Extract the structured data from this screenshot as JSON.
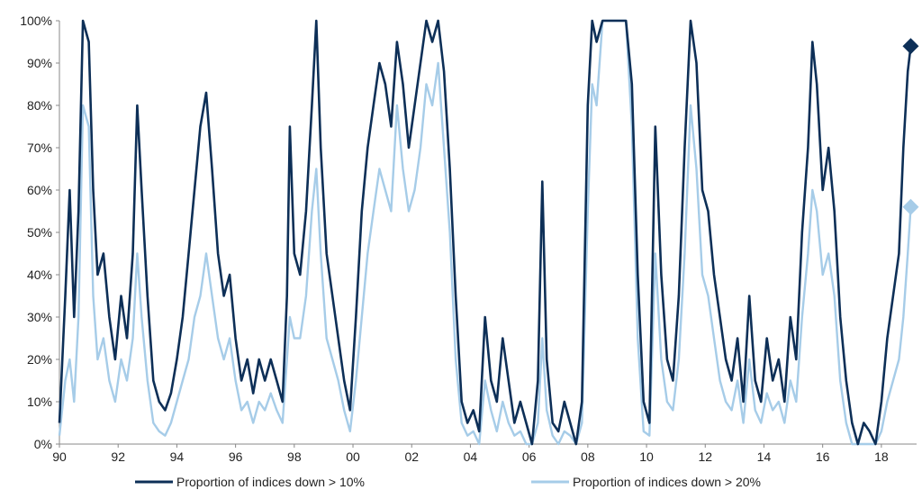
{
  "chart_data": {
    "type": "line",
    "title": "",
    "xlabel": "",
    "ylabel": "",
    "x_range": [
      1990,
      2019.2
    ],
    "ylim": [
      0,
      100
    ],
    "y_ticks": [
      0,
      10,
      20,
      30,
      40,
      50,
      60,
      70,
      80,
      90,
      100
    ],
    "y_tick_labels": [
      "0%",
      "10%",
      "20%",
      "30%",
      "40%",
      "50%",
      "60%",
      "70%",
      "80%",
      "90%",
      "100%"
    ],
    "x_ticks": [
      1990,
      1992,
      1994,
      1996,
      1998,
      2000,
      2002,
      2004,
      2006,
      2008,
      2010,
      2012,
      2014,
      2016,
      2018
    ],
    "x_tick_labels": [
      "90",
      "92",
      "94",
      "96",
      "98",
      "00",
      "02",
      "04",
      "06",
      "08",
      "10",
      "12",
      "14",
      "16",
      "18"
    ],
    "grid": false,
    "legend_position": "bottom",
    "colors": {
      "series1": "#0d2f57",
      "series2": "#a6cce8"
    },
    "series": [
      {
        "name": "Proportion of indices down > 10%",
        "points": [
          [
            1990.0,
            5
          ],
          [
            1990.2,
            35
          ],
          [
            1990.35,
            60
          ],
          [
            1990.5,
            30
          ],
          [
            1990.65,
            55
          ],
          [
            1990.8,
            100
          ],
          [
            1991.0,
            95
          ],
          [
            1991.15,
            60
          ],
          [
            1991.3,
            40
          ],
          [
            1991.5,
            45
          ],
          [
            1991.7,
            30
          ],
          [
            1991.9,
            20
          ],
          [
            1992.1,
            35
          ],
          [
            1992.3,
            25
          ],
          [
            1992.5,
            45
          ],
          [
            1992.65,
            80
          ],
          [
            1992.8,
            60
          ],
          [
            1993.0,
            35
          ],
          [
            1993.2,
            15
          ],
          [
            1993.4,
            10
          ],
          [
            1993.6,
            8
          ],
          [
            1993.8,
            12
          ],
          [
            1994.0,
            20
          ],
          [
            1994.2,
            30
          ],
          [
            1994.4,
            45
          ],
          [
            1994.6,
            60
          ],
          [
            1994.8,
            75
          ],
          [
            1995.0,
            83
          ],
          [
            1995.2,
            65
          ],
          [
            1995.4,
            45
          ],
          [
            1995.6,
            35
          ],
          [
            1995.8,
            40
          ],
          [
            1996.0,
            25
          ],
          [
            1996.2,
            15
          ],
          [
            1996.4,
            20
          ],
          [
            1996.6,
            12
          ],
          [
            1996.8,
            20
          ],
          [
            1997.0,
            15
          ],
          [
            1997.2,
            20
          ],
          [
            1997.4,
            15
          ],
          [
            1997.6,
            10
          ],
          [
            1997.75,
            35
          ],
          [
            1997.85,
            75
          ],
          [
            1998.0,
            45
          ],
          [
            1998.2,
            40
          ],
          [
            1998.4,
            55
          ],
          [
            1998.6,
            80
          ],
          [
            1998.75,
            100
          ],
          [
            1998.9,
            70
          ],
          [
            1999.1,
            45
          ],
          [
            1999.3,
            35
          ],
          [
            1999.5,
            25
          ],
          [
            1999.7,
            15
          ],
          [
            1999.9,
            8
          ],
          [
            2000.1,
            30
          ],
          [
            2000.3,
            55
          ],
          [
            2000.5,
            70
          ],
          [
            2000.7,
            80
          ],
          [
            2000.9,
            90
          ],
          [
            2001.1,
            85
          ],
          [
            2001.3,
            75
          ],
          [
            2001.5,
            95
          ],
          [
            2001.7,
            85
          ],
          [
            2001.9,
            70
          ],
          [
            2002.1,
            80
          ],
          [
            2002.3,
            90
          ],
          [
            2002.5,
            100
          ],
          [
            2002.7,
            95
          ],
          [
            2002.9,
            100
          ],
          [
            2003.1,
            88
          ],
          [
            2003.3,
            65
          ],
          [
            2003.5,
            35
          ],
          [
            2003.7,
            10
          ],
          [
            2003.9,
            5
          ],
          [
            2004.1,
            8
          ],
          [
            2004.3,
            3
          ],
          [
            2004.5,
            30
          ],
          [
            2004.7,
            15
          ],
          [
            2004.9,
            10
          ],
          [
            2005.1,
            25
          ],
          [
            2005.3,
            15
          ],
          [
            2005.5,
            5
          ],
          [
            2005.7,
            10
          ],
          [
            2005.9,
            5
          ],
          [
            2006.1,
            0
          ],
          [
            2006.3,
            15
          ],
          [
            2006.45,
            62
          ],
          [
            2006.6,
            20
          ],
          [
            2006.8,
            5
          ],
          [
            2007.0,
            3
          ],
          [
            2007.2,
            10
          ],
          [
            2007.4,
            5
          ],
          [
            2007.6,
            0
          ],
          [
            2007.8,
            10
          ],
          [
            2008.0,
            80
          ],
          [
            2008.15,
            100
          ],
          [
            2008.3,
            95
          ],
          [
            2008.5,
            100
          ],
          [
            2008.7,
            100
          ],
          [
            2009.0,
            100
          ],
          [
            2009.3,
            100
          ],
          [
            2009.5,
            85
          ],
          [
            2009.7,
            40
          ],
          [
            2009.9,
            10
          ],
          [
            2010.1,
            5
          ],
          [
            2010.3,
            75
          ],
          [
            2010.5,
            40
          ],
          [
            2010.7,
            20
          ],
          [
            2010.9,
            15
          ],
          [
            2011.1,
            35
          ],
          [
            2011.3,
            70
          ],
          [
            2011.5,
            100
          ],
          [
            2011.7,
            90
          ],
          [
            2011.9,
            60
          ],
          [
            2012.1,
            55
          ],
          [
            2012.3,
            40
          ],
          [
            2012.5,
            30
          ],
          [
            2012.7,
            20
          ],
          [
            2012.9,
            15
          ],
          [
            2013.1,
            25
          ],
          [
            2013.3,
            10
          ],
          [
            2013.5,
            35
          ],
          [
            2013.7,
            15
          ],
          [
            2013.9,
            10
          ],
          [
            2014.1,
            25
          ],
          [
            2014.3,
            15
          ],
          [
            2014.5,
            20
          ],
          [
            2014.7,
            10
          ],
          [
            2014.9,
            30
          ],
          [
            2015.1,
            20
          ],
          [
            2015.3,
            50
          ],
          [
            2015.5,
            70
          ],
          [
            2015.65,
            95
          ],
          [
            2015.8,
            85
          ],
          [
            2016.0,
            60
          ],
          [
            2016.2,
            70
          ],
          [
            2016.4,
            55
          ],
          [
            2016.6,
            30
          ],
          [
            2016.8,
            15
          ],
          [
            2017.0,
            5
          ],
          [
            2017.2,
            0
          ],
          [
            2017.4,
            5
          ],
          [
            2017.6,
            3
          ],
          [
            2017.8,
            0
          ],
          [
            2018.0,
            10
          ],
          [
            2018.2,
            25
          ],
          [
            2018.4,
            35
          ],
          [
            2018.6,
            45
          ],
          [
            2018.75,
            70
          ],
          [
            2018.9,
            88
          ],
          [
            2019.0,
            94
          ]
        ],
        "end_value": 94
      },
      {
        "name": "Proportion of indices down > 20%",
        "points": [
          [
            1990.0,
            2
          ],
          [
            1990.2,
            15
          ],
          [
            1990.35,
            20
          ],
          [
            1990.5,
            10
          ],
          [
            1990.65,
            30
          ],
          [
            1990.8,
            80
          ],
          [
            1991.0,
            75
          ],
          [
            1991.15,
            35
          ],
          [
            1991.3,
            20
          ],
          [
            1991.5,
            25
          ],
          [
            1991.7,
            15
          ],
          [
            1991.9,
            10
          ],
          [
            1992.1,
            20
          ],
          [
            1992.3,
            15
          ],
          [
            1992.5,
            25
          ],
          [
            1992.65,
            45
          ],
          [
            1992.8,
            30
          ],
          [
            1993.0,
            15
          ],
          [
            1993.2,
            5
          ],
          [
            1993.4,
            3
          ],
          [
            1993.6,
            2
          ],
          [
            1993.8,
            5
          ],
          [
            1994.0,
            10
          ],
          [
            1994.2,
            15
          ],
          [
            1994.4,
            20
          ],
          [
            1994.6,
            30
          ],
          [
            1994.8,
            35
          ],
          [
            1995.0,
            45
          ],
          [
            1995.2,
            35
          ],
          [
            1995.4,
            25
          ],
          [
            1995.6,
            20
          ],
          [
            1995.8,
            25
          ],
          [
            1996.0,
            15
          ],
          [
            1996.2,
            8
          ],
          [
            1996.4,
            10
          ],
          [
            1996.6,
            5
          ],
          [
            1996.8,
            10
          ],
          [
            1997.0,
            8
          ],
          [
            1997.2,
            12
          ],
          [
            1997.4,
            8
          ],
          [
            1997.6,
            5
          ],
          [
            1997.75,
            20
          ],
          [
            1997.85,
            30
          ],
          [
            1998.0,
            25
          ],
          [
            1998.2,
            25
          ],
          [
            1998.4,
            35
          ],
          [
            1998.6,
            55
          ],
          [
            1998.75,
            65
          ],
          [
            1998.9,
            45
          ],
          [
            1999.1,
            25
          ],
          [
            1999.3,
            20
          ],
          [
            1999.5,
            15
          ],
          [
            1999.7,
            8
          ],
          [
            1999.9,
            3
          ],
          [
            2000.1,
            15
          ],
          [
            2000.3,
            30
          ],
          [
            2000.5,
            45
          ],
          [
            2000.7,
            55
          ],
          [
            2000.9,
            65
          ],
          [
            2001.1,
            60
          ],
          [
            2001.3,
            55
          ],
          [
            2001.5,
            80
          ],
          [
            2001.7,
            65
          ],
          [
            2001.9,
            55
          ],
          [
            2002.1,
            60
          ],
          [
            2002.3,
            70
          ],
          [
            2002.5,
            85
          ],
          [
            2002.7,
            80
          ],
          [
            2002.9,
            90
          ],
          [
            2003.1,
            70
          ],
          [
            2003.3,
            50
          ],
          [
            2003.5,
            20
          ],
          [
            2003.7,
            5
          ],
          [
            2003.9,
            2
          ],
          [
            2004.1,
            3
          ],
          [
            2004.3,
            0
          ],
          [
            2004.5,
            15
          ],
          [
            2004.7,
            8
          ],
          [
            2004.9,
            3
          ],
          [
            2005.1,
            10
          ],
          [
            2005.3,
            5
          ],
          [
            2005.5,
            2
          ],
          [
            2005.7,
            3
          ],
          [
            2005.9,
            0
          ],
          [
            2006.1,
            0
          ],
          [
            2006.3,
            5
          ],
          [
            2006.45,
            25
          ],
          [
            2006.6,
            8
          ],
          [
            2006.8,
            2
          ],
          [
            2007.0,
            0
          ],
          [
            2007.2,
            3
          ],
          [
            2007.4,
            2
          ],
          [
            2007.6,
            0
          ],
          [
            2007.8,
            5
          ],
          [
            2008.0,
            55
          ],
          [
            2008.15,
            85
          ],
          [
            2008.3,
            80
          ],
          [
            2008.5,
            100
          ],
          [
            2008.7,
            100
          ],
          [
            2009.0,
            100
          ],
          [
            2009.3,
            100
          ],
          [
            2009.5,
            75
          ],
          [
            2009.7,
            25
          ],
          [
            2009.9,
            3
          ],
          [
            2010.1,
            2
          ],
          [
            2010.3,
            45
          ],
          [
            2010.5,
            20
          ],
          [
            2010.7,
            10
          ],
          [
            2010.9,
            8
          ],
          [
            2011.1,
            20
          ],
          [
            2011.3,
            45
          ],
          [
            2011.5,
            80
          ],
          [
            2011.7,
            65
          ],
          [
            2011.9,
            40
          ],
          [
            2012.1,
            35
          ],
          [
            2012.3,
            25
          ],
          [
            2012.5,
            15
          ],
          [
            2012.7,
            10
          ],
          [
            2012.9,
            8
          ],
          [
            2013.1,
            15
          ],
          [
            2013.3,
            5
          ],
          [
            2013.5,
            20
          ],
          [
            2013.7,
            8
          ],
          [
            2013.9,
            5
          ],
          [
            2014.1,
            12
          ],
          [
            2014.3,
            8
          ],
          [
            2014.5,
            10
          ],
          [
            2014.7,
            5
          ],
          [
            2014.9,
            15
          ],
          [
            2015.1,
            10
          ],
          [
            2015.3,
            30
          ],
          [
            2015.5,
            45
          ],
          [
            2015.65,
            60
          ],
          [
            2015.8,
            55
          ],
          [
            2016.0,
            40
          ],
          [
            2016.2,
            45
          ],
          [
            2016.4,
            35
          ],
          [
            2016.6,
            15
          ],
          [
            2016.8,
            5
          ],
          [
            2017.0,
            0
          ],
          [
            2017.2,
            0
          ],
          [
            2017.4,
            0
          ],
          [
            2017.6,
            0
          ],
          [
            2017.8,
            0
          ],
          [
            2018.0,
            3
          ],
          [
            2018.2,
            10
          ],
          [
            2018.4,
            15
          ],
          [
            2018.6,
            20
          ],
          [
            2018.75,
            30
          ],
          [
            2018.9,
            45
          ],
          [
            2019.0,
            56
          ]
        ],
        "end_value": 56
      }
    ]
  }
}
